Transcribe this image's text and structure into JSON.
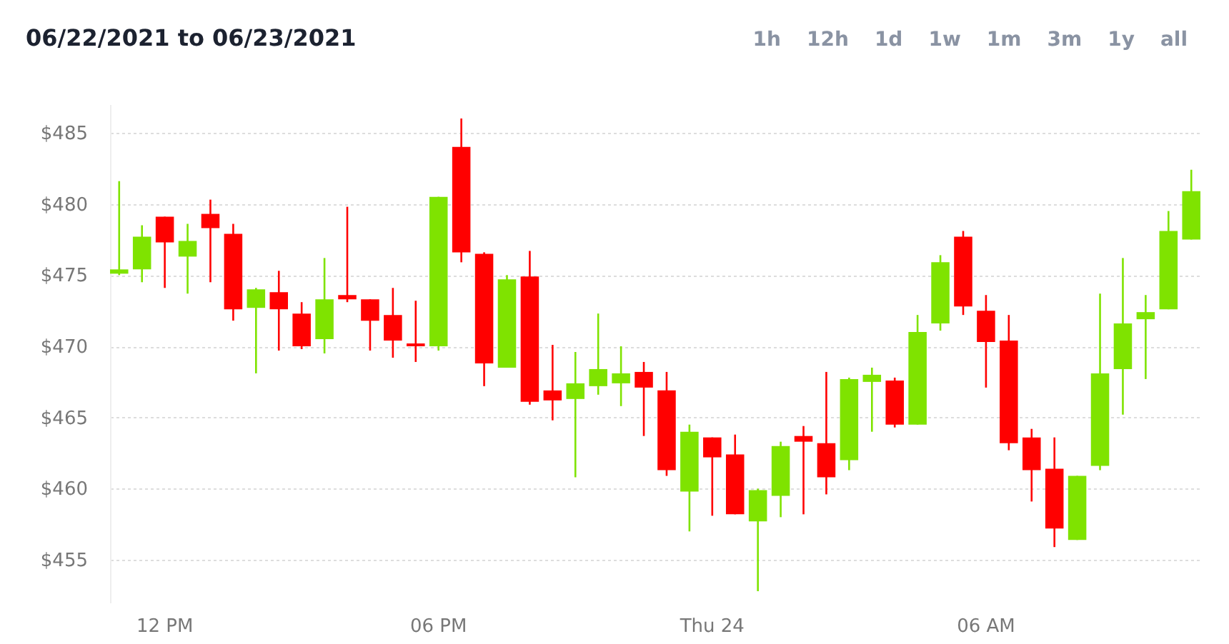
{
  "chart_data": {
    "type": "candlestick",
    "title": "06/22/2021 to 06/23/2021",
    "annotations": [
      "1h",
      "12h",
      "1d",
      "1w",
      "1m",
      "3m",
      "1y",
      "all"
    ],
    "categories": [
      null,
      null,
      "12 PM",
      null,
      null,
      null,
      null,
      null,
      null,
      null,
      null,
      null,
      null,
      null,
      "06 PM",
      null,
      null,
      null,
      null,
      null,
      null,
      null,
      null,
      null,
      null,
      null,
      "Thu 24",
      null,
      null,
      null,
      null,
      null,
      null,
      null,
      null,
      null,
      null,
      null,
      "06 AM",
      null,
      null,
      null,
      null,
      null,
      null,
      null,
      null,
      null
    ],
    "ohlc": [
      [
        475.1,
        481.6,
        475.0,
        475.4
      ],
      [
        475.4,
        478.5,
        474.5,
        477.7
      ],
      [
        479.1,
        479.1,
        474.1,
        477.3
      ],
      [
        476.3,
        478.6,
        473.7,
        477.4
      ],
      [
        479.3,
        480.3,
        474.5,
        478.3
      ],
      [
        477.9,
        478.6,
        471.8,
        472.6
      ],
      [
        472.7,
        474.1,
        468.1,
        474.0
      ],
      [
        473.8,
        475.3,
        469.7,
        472.6
      ],
      [
        472.3,
        473.1,
        469.8,
        470.0
      ],
      [
        470.5,
        476.2,
        469.5,
        473.3
      ],
      [
        473.6,
        479.8,
        473.1,
        473.3
      ],
      [
        473.3,
        473.3,
        469.7,
        471.8
      ],
      [
        472.2,
        474.1,
        469.2,
        470.4
      ],
      [
        470.2,
        473.2,
        468.9,
        470.0
      ],
      [
        470.0,
        480.5,
        469.7,
        480.5
      ],
      [
        484.0,
        486.0,
        475.9,
        476.6
      ],
      [
        476.5,
        476.6,
        467.2,
        468.8
      ],
      [
        468.5,
        475.0,
        468.5,
        474.7
      ],
      [
        474.9,
        476.7,
        465.9,
        466.1
      ],
      [
        466.9,
        470.1,
        464.8,
        466.2
      ],
      [
        466.3,
        469.6,
        460.8,
        467.4
      ],
      [
        467.2,
        472.3,
        466.6,
        468.4
      ],
      [
        467.4,
        470.0,
        465.8,
        468.1
      ],
      [
        468.2,
        468.9,
        463.7,
        467.1
      ],
      [
        466.9,
        468.2,
        460.9,
        461.3
      ],
      [
        459.8,
        464.5,
        457.0,
        464.0
      ],
      [
        463.6,
        463.6,
        458.1,
        462.2
      ],
      [
        462.4,
        463.8,
        458.2,
        458.2
      ],
      [
        457.7,
        460.0,
        452.8,
        459.9
      ],
      [
        459.5,
        463.3,
        458.0,
        463.0
      ],
      [
        463.7,
        464.4,
        458.2,
        463.3
      ],
      [
        463.2,
        468.2,
        459.6,
        460.8
      ],
      [
        462.0,
        467.8,
        461.3,
        467.7
      ],
      [
        467.5,
        468.5,
        464.0,
        468.0
      ],
      [
        467.6,
        467.8,
        464.3,
        464.5
      ],
      [
        464.5,
        472.2,
        464.5,
        471.0
      ],
      [
        471.6,
        476.4,
        471.1,
        475.9
      ],
      [
        477.7,
        478.1,
        472.2,
        472.8
      ],
      [
        472.5,
        473.6,
        467.1,
        470.3
      ],
      [
        470.4,
        472.2,
        462.7,
        463.2
      ],
      [
        463.6,
        464.2,
        459.1,
        461.3
      ],
      [
        461.4,
        463.6,
        455.9,
        457.2
      ],
      [
        456.4,
        460.9,
        456.4,
        460.9
      ],
      [
        461.6,
        473.7,
        461.3,
        468.1
      ],
      [
        468.4,
        476.2,
        465.2,
        471.6
      ],
      [
        471.9,
        473.6,
        467.7,
        472.4
      ],
      [
        472.6,
        479.5,
        472.6,
        478.1
      ],
      [
        477.5,
        482.4,
        477.5,
        480.9
      ]
    ],
    "colors": [
      "#7fe300",
      "#7fe300",
      "#ff0000",
      "#7fe300",
      "#ff0000",
      "#ff0000",
      "#7fe300",
      "#ff0000",
      "#ff0000",
      "#7fe300",
      "#ff0000",
      "#ff0000",
      "#ff0000",
      "#ff0000",
      "#7fe300",
      "#ff0000",
      "#ff0000",
      "#7fe300",
      "#ff0000",
      "#ff0000",
      "#7fe300",
      "#7fe300",
      "#7fe300",
      "#ff0000",
      "#ff0000",
      "#7fe300",
      "#ff0000",
      "#ff0000",
      "#7fe300",
      "#7fe300",
      "#ff0000",
      "#ff0000",
      "#7fe300",
      "#7fe300",
      "#ff0000",
      "#7fe300",
      "#7fe300",
      "#ff0000",
      "#ff0000",
      "#ff0000",
      "#ff0000",
      "#ff0000",
      "#7fe300",
      "#7fe300",
      "#7fe300",
      "#7fe300",
      "#7fe300",
      "#7fe300"
    ],
    "yticks": [
      {
        "value": 455,
        "label": "$455"
      },
      {
        "value": 460,
        "label": "$460"
      },
      {
        "value": 465,
        "label": "$465"
      },
      {
        "value": 470,
        "label": "$470"
      },
      {
        "value": 475,
        "label": "$475"
      },
      {
        "value": 480,
        "label": "$480"
      },
      {
        "value": 485,
        "label": "$485"
      }
    ],
    "ylim": [
      452,
      487
    ],
    "grid": "y"
  }
}
